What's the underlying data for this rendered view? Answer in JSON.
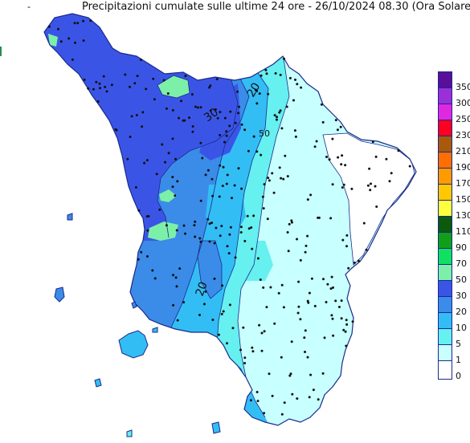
{
  "header": {
    "marker": "-",
    "title": "Precipitazioni cumulate sulle ultime 24 ore - 26/10/2024 08.30 (Ora Solare)"
  },
  "map": {
    "region": "Toscana",
    "contour_labels": [
      "30",
      "20",
      "20",
      "50"
    ],
    "fill_colors": {
      "lt5": "#c8ffff",
      "5-10": "#66f0f0",
      "10-20": "#33bdf5",
      "20-30": "#3a8ce8",
      "30-50": "#3a55e6",
      "50-70": "#7cf0a8",
      "none": "#ffffff"
    }
  },
  "legend": {
    "items": [
      {
        "label": "350",
        "color": "#5a0f9a"
      },
      {
        "label": "300",
        "color": "#9a30d8"
      },
      {
        "label": "250",
        "color": "#e028e0"
      },
      {
        "label": "230",
        "color": "#ff0022"
      },
      {
        "label": "210",
        "color": "#a85a0a"
      },
      {
        "label": "190",
        "color": "#ff6e00"
      },
      {
        "label": "170",
        "color": "#ff9a00"
      },
      {
        "label": "150",
        "color": "#ffc800"
      },
      {
        "label": "130",
        "color": "#ffff3c"
      },
      {
        "label": "110",
        "color": "#0c5a0c"
      },
      {
        "label": "90",
        "color": "#10a018"
      },
      {
        "label": "70",
        "color": "#10e060"
      },
      {
        "label": "50",
        "color": "#7cf0a8"
      },
      {
        "label": "30",
        "color": "#3a55e6"
      },
      {
        "label": "20",
        "color": "#3a8ce8"
      },
      {
        "label": "10",
        "color": "#33bdf5"
      },
      {
        "label": "5",
        "color": "#66f0f0"
      },
      {
        "label": "1",
        "color": "#c8ffff"
      },
      {
        "label": "0",
        "color": "#ffffff"
      }
    ]
  }
}
